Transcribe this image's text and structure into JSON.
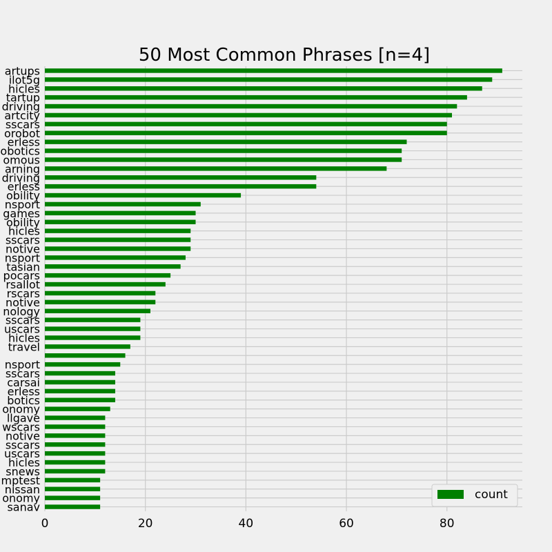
{
  "chart_data": {
    "type": "bar",
    "orientation": "horizontal",
    "title": "50 Most Common Phrases [n=4]",
    "xlabel": "",
    "ylabel": "",
    "xlim": [
      0,
      95
    ],
    "xticks": [
      0,
      20,
      40,
      60,
      80
    ],
    "grid": true,
    "legend_position": "bottom-right",
    "bar_color": "#008000",
    "background_color": "#f0f0f0",
    "grid_color": "#cbcbcb",
    "series": [
      {
        "name": "count"
      }
    ],
    "categories": [
      "artups",
      "ilot5g",
      "hicles",
      "tartup",
      "driving",
      "artcity",
      "sscars",
      "orobot",
      "erless",
      "obotics",
      "omous",
      "arning",
      "driving",
      "erless",
      "obility",
      "nsport",
      "games",
      "obility",
      "hicles",
      "sscars",
      "notive",
      "nsport",
      "tasian",
      "pocars",
      "rsallot",
      "rscars",
      "notive",
      "nology",
      "sscars",
      "uscars",
      "hicles",
      "travel",
      "",
      "nsport",
      "sscars",
      "carsai",
      "erless",
      "botics",
      "onomy",
      "llgave",
      "wscars",
      "notive",
      "sscars",
      "uscars",
      "hicles",
      "snews",
      "mptest",
      "nissan",
      "onomy",
      "sanav"
    ],
    "values": [
      91,
      89,
      87,
      84,
      82,
      81,
      80,
      80,
      72,
      71,
      71,
      68,
      54,
      54,
      39,
      31,
      30,
      30,
      29,
      29,
      29,
      28,
      27,
      25,
      24,
      22,
      22,
      21,
      19,
      19,
      19,
      17,
      16,
      15,
      14,
      14,
      14,
      14,
      13,
      12,
      12,
      12,
      12,
      12,
      12,
      12,
      11,
      11,
      11,
      11
    ]
  }
}
